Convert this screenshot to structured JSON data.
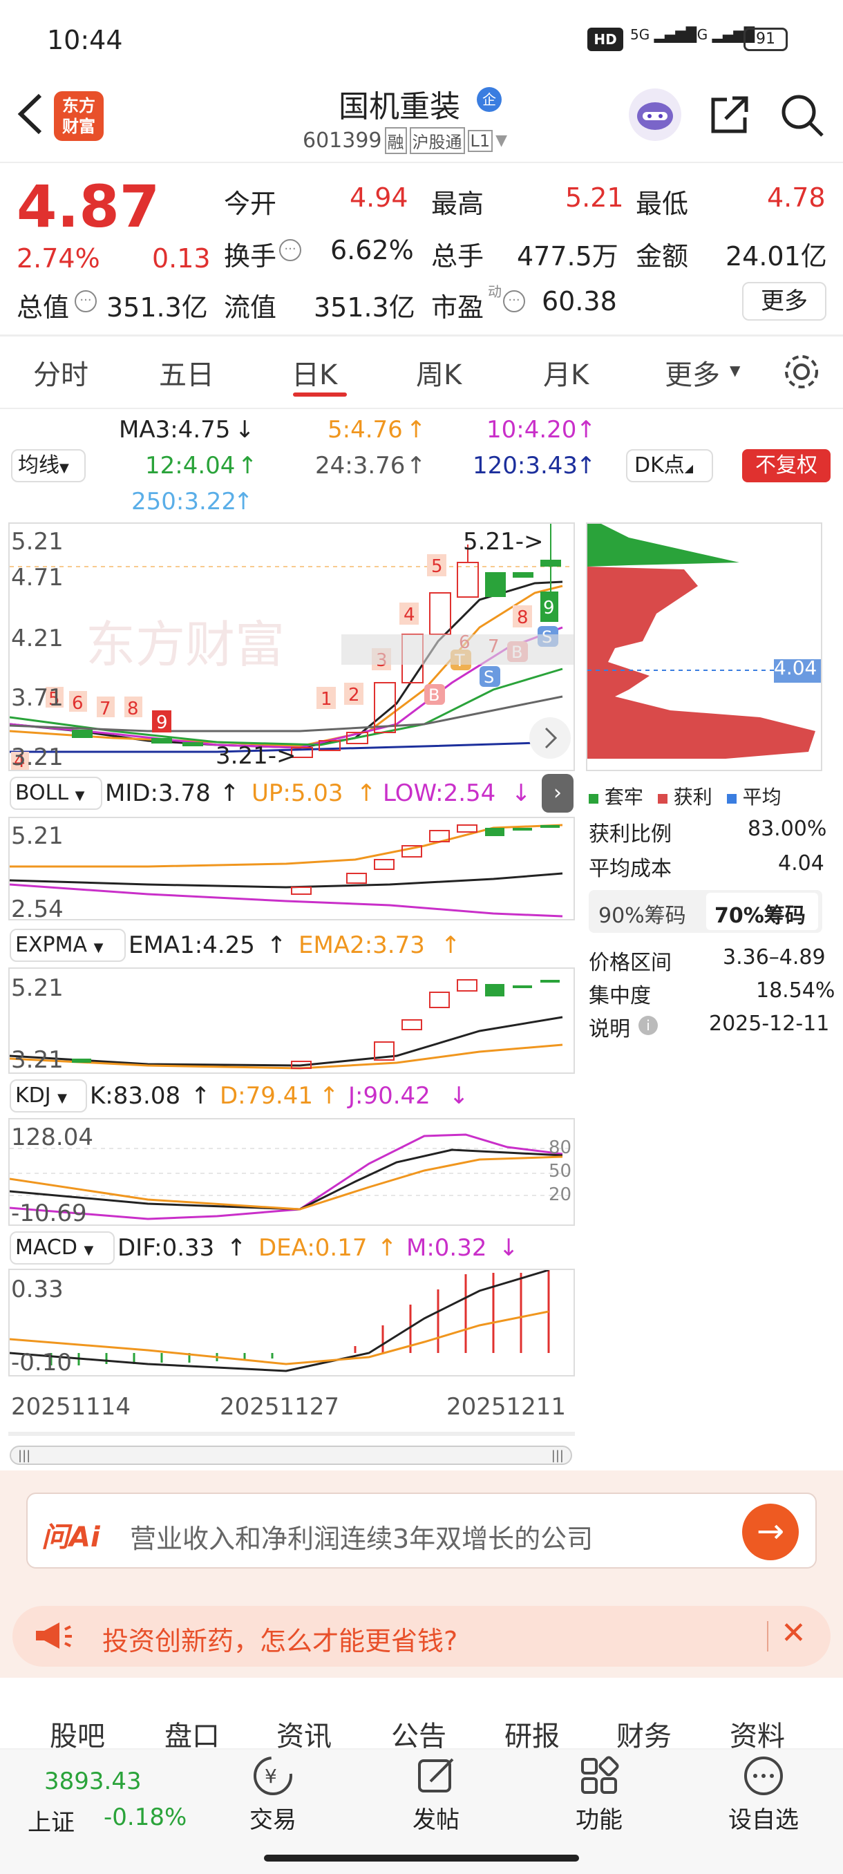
{
  "status_bar": {
    "time": "10:44",
    "battery": "91"
  },
  "header": {
    "back": "back",
    "logo_line1": "东方",
    "logo_line2": "财富",
    "title": "国机重装",
    "badge": "企",
    "code": "601399",
    "tags": [
      "融",
      "沪股通",
      "L1"
    ]
  },
  "quote": {
    "price": "4.87",
    "change_pct": "2.74%",
    "change": "0.13",
    "fields": [
      {
        "label": "今开",
        "value": "4.94",
        "color": "#e0312f"
      },
      {
        "label": "最高",
        "value": "5.21",
        "color": "#e0312f"
      },
      {
        "label": "最低",
        "value": "4.78",
        "color": "#e0312f"
      },
      {
        "label": "换手",
        "value": "6.62%",
        "color": "#222"
      },
      {
        "label": "总手",
        "value": "477.5万",
        "color": "#222"
      },
      {
        "label": "金额",
        "value": "24.01亿",
        "color": "#222"
      },
      {
        "label": "总值",
        "value": "351.3亿",
        "color": "#222"
      },
      {
        "label": "流值",
        "value": "351.3亿",
        "color": "#222"
      },
      {
        "label": "市盈",
        "value": "60.38",
        "color": "#222"
      }
    ],
    "pe_sup": "动",
    "more": "更多"
  },
  "tabs": [
    "分时",
    "五日",
    "日K",
    "周K",
    "月K",
    "更多"
  ],
  "ma": {
    "selector": "均线",
    "ma3": "MA3:4.75",
    "ma5": "5:4.76",
    "ma10": "10:4.20",
    "ma12": "12:4.04",
    "ma24": "24:3.76",
    "ma120": "120:3.43",
    "ma250": "250:3.22",
    "dk": "DK点",
    "fq": "不复权"
  },
  "main_chart": {
    "y_top": "5.21",
    "y_mid1": "4.71",
    "y_mid2": "4.21",
    "y_mid3": "3.71",
    "y_bot": "3.21",
    "high_label": "5.21->",
    "low_label": "3.21->",
    "watermark": "东方财富"
  },
  "chip": {
    "avg": "4.04",
    "legend": [
      "套牢",
      "获利",
      "平均"
    ],
    "rows": [
      {
        "label": "获利比例",
        "value": "83.00%"
      },
      {
        "label": "平均成本",
        "value": "4.04"
      }
    ],
    "tabs": [
      "90%筹码",
      "70%筹码"
    ],
    "rows2": [
      {
        "label": "价格区间",
        "value": "3.36–4.89"
      },
      {
        "label": "集中度",
        "value": "18.54%"
      },
      {
        "label": "说明",
        "value": "2025-12-11"
      }
    ]
  },
  "boll": {
    "name": "BOLL",
    "mid": "MID:3.78",
    "up": "UP:5.03",
    "low": "LOW:2.54",
    "y_top": "5.21",
    "y_bot": "2.54"
  },
  "expma": {
    "name": "EXPMA",
    "ema1": "EMA1:4.25",
    "ema2": "EMA2:3.73",
    "y_top": "5.21",
    "y_bot": "3.21"
  },
  "kdj": {
    "name": "KDJ",
    "k": "K:83.08",
    "d": "D:79.41",
    "j": "J:90.42",
    "y_top": "128.04",
    "y_bot": "-10.69",
    "levels": [
      "80",
      "50",
      "20"
    ]
  },
  "macd": {
    "name": "MACD",
    "dif": "DIF:0.33",
    "dea": "DEA:0.17",
    "m": "M:0.32",
    "y_top": "0.33",
    "y_bot": "-0.10"
  },
  "x_dates": [
    "20251114",
    "20251127",
    "20251211"
  ],
  "ai": {
    "logo": "问Ai",
    "text": "营业收入和净利润连续3年双增长的公司"
  },
  "promo": {
    "text": "投资创新药，怎么才能更省钱?"
  },
  "bottom_tabs": [
    "股吧",
    "盘口",
    "资讯",
    "公告",
    "研报",
    "财务",
    "资料"
  ],
  "footer": {
    "index_value": "3893.43",
    "index_name": "上证",
    "index_change": "-0.18%",
    "items": [
      "交易",
      "发帖",
      "功能",
      "设自选"
    ]
  }
}
